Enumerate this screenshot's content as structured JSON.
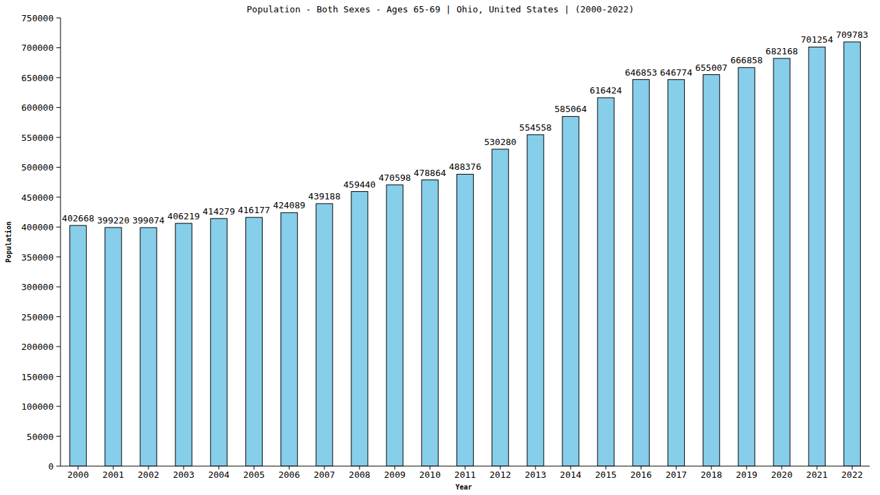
{
  "chart_data": {
    "type": "bar",
    "title": "Population - Both Sexes - Ages 65-69 | Ohio, United States |  (2000-2022)",
    "x_label": "Year",
    "y_label": "Population",
    "categories": [
      "2000",
      "2001",
      "2002",
      "2003",
      "2004",
      "2005",
      "2006",
      "2007",
      "2008",
      "2009",
      "2010",
      "2011",
      "2012",
      "2013",
      "2014",
      "2015",
      "2016",
      "2017",
      "2018",
      "2019",
      "2020",
      "2021",
      "2022"
    ],
    "values": [
      402668,
      399220,
      399074,
      406219,
      414279,
      416177,
      424089,
      439188,
      459440,
      470598,
      478864,
      488376,
      530280,
      554558,
      585064,
      616424,
      646853,
      646774,
      655007,
      666858,
      682168,
      701254,
      709783
    ],
    "color": "#87ceeb",
    "ylim": [
      0,
      750000
    ],
    "yticks": [
      0,
      50000,
      100000,
      150000,
      200000,
      250000,
      300000,
      350000,
      400000,
      450000,
      500000,
      550000,
      600000,
      650000,
      700000,
      750000
    ],
    "grid": false,
    "data_labels": true
  }
}
